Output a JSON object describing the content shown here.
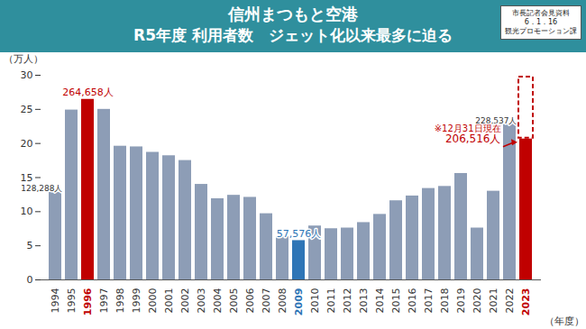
{
  "chart_data": {
    "type": "bar",
    "title": "信州まつもと空港",
    "subtitle": "R5年度 利用者数　ジェット化以来最多に迫る",
    "badge": [
      "市長記者会見資料",
      "6．1．16",
      "観光プロモーション課"
    ],
    "annotations": [
      "※12月31日現在"
    ],
    "y_label": "（万人）",
    "x_label": "（年度）",
    "categories": [
      "1994",
      "1995",
      "1996",
      "1997",
      "1998",
      "1999",
      "2000",
      "2001",
      "2002",
      "2003",
      "2004",
      "2005",
      "2006",
      "2007",
      "2008",
      "2009",
      "2010",
      "2011",
      "2012",
      "2013",
      "2014",
      "2015",
      "2016",
      "2017",
      "2018",
      "2019",
      "2020",
      "2021",
      "2022",
      "2023"
    ],
    "values": [
      12.8288,
      24.9,
      26.4658,
      25.0,
      19.6,
      19.5,
      18.7,
      18.2,
      17.5,
      14.0,
      11.9,
      12.4,
      12.1,
      9.7,
      6.3,
      5.7576,
      7.9,
      7.5,
      7.6,
      8.4,
      9.6,
      11.6,
      12.3,
      13.4,
      13.7,
      15.6,
      7.6,
      13.0,
      22.8537,
      20.6516
    ],
    "value_labels": [
      "128,288人",
      null,
      "264,658人",
      null,
      null,
      null,
      null,
      null,
      null,
      null,
      null,
      null,
      null,
      null,
      null,
      "57,576人",
      null,
      null,
      null,
      null,
      null,
      null,
      null,
      null,
      null,
      null,
      null,
      null,
      "228,537人",
      "206,516人"
    ],
    "colors": [
      "#8d9db6",
      "#8d9db6",
      "#c00000",
      "#8d9db6",
      "#8d9db6",
      "#8d9db6",
      "#8d9db6",
      "#8d9db6",
      "#8d9db6",
      "#8d9db6",
      "#8d9db6",
      "#8d9db6",
      "#8d9db6",
      "#8d9db6",
      "#8d9db6",
      "#2e75b6",
      "#8d9db6",
      "#8d9db6",
      "#8d9db6",
      "#8d9db6",
      "#8d9db6",
      "#8d9db6",
      "#8d9db6",
      "#8d9db6",
      "#8d9db6",
      "#8d9db6",
      "#8d9db6",
      "#8d9db6",
      "#8d9db6",
      "#c00000"
    ],
    "ylim": [
      0,
      30
    ],
    "yticks": [
      0,
      5,
      10,
      15,
      20,
      25,
      30
    ],
    "grid": false,
    "data_labels": true
  }
}
